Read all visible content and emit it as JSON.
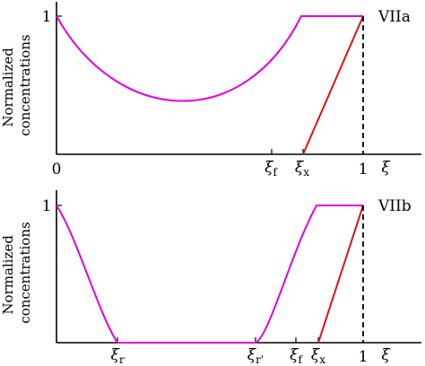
{
  "panels": [
    {
      "panel_label": "VIIa",
      "y_label_line1": "Normalized",
      "y_label_line2": "concentrations",
      "y_tick_one": "1",
      "x_zero": "0",
      "x_one": "1",
      "x_symbol": "ξ",
      "xi_ticks": [
        {
          "base": "ξ",
          "sub": "f"
        },
        {
          "base": "ξ",
          "sub": "x"
        }
      ]
    },
    {
      "panel_label": "VIIb",
      "y_label_line1": "Normalized",
      "y_label_line2": "concentrations",
      "y_tick_one": "1",
      "x_zero": "",
      "x_one": "1",
      "x_symbol": "ξ",
      "xi_ticks": [
        {
          "base": "ξ",
          "sub": "r"
        },
        {
          "base": "ξ",
          "sub": "r'"
        },
        {
          "base": "ξ",
          "sub": "f"
        },
        {
          "base": "ξ",
          "sub": "x"
        }
      ]
    }
  ],
  "colors": {
    "magenta_curve": "#e000e0",
    "red_line": "#dd1111",
    "axes": "#000000"
  }
}
